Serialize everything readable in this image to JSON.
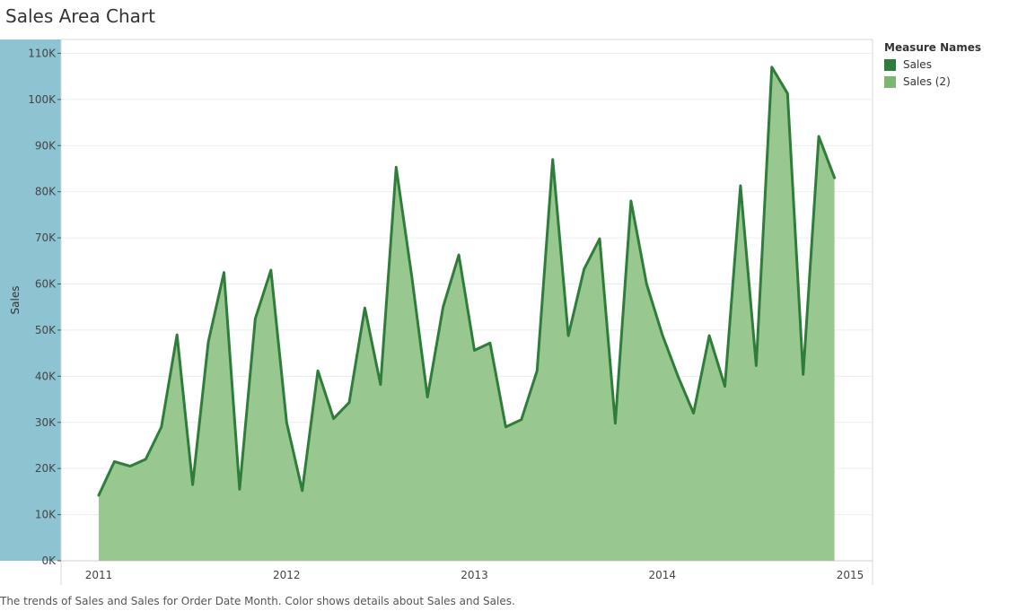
{
  "page": {
    "title": "Sales Area Chart",
    "caption": "The trends of Sales and Sales for Order Date Month.  Color shows details about Sales and Sales."
  },
  "legend": {
    "title": "Measure Names",
    "items": [
      {
        "label": "Sales",
        "color": "#2f7d3a"
      },
      {
        "label": "Sales (2)",
        "color": "#7ab872"
      }
    ]
  },
  "colors": {
    "axis_band": "#8ec4d2",
    "line": "#2f7d3a",
    "area": "#99c790"
  },
  "chart_data": {
    "type": "area",
    "ylabel": "Sales",
    "xlabel": "",
    "ylim": [
      0,
      110000
    ],
    "y_ticks": [
      "0K",
      "10K",
      "20K",
      "30K",
      "40K",
      "50K",
      "60K",
      "70K",
      "80K",
      "90K",
      "100K",
      "110K"
    ],
    "x_ticks": [
      "2011",
      "2012",
      "2013",
      "2014",
      "2015"
    ],
    "x": [
      "2011-01",
      "2011-02",
      "2011-03",
      "2011-04",
      "2011-05",
      "2011-06",
      "2011-07",
      "2011-08",
      "2011-09",
      "2011-10",
      "2011-11",
      "2011-12",
      "2012-01",
      "2012-02",
      "2012-03",
      "2012-04",
      "2012-05",
      "2012-06",
      "2012-07",
      "2012-08",
      "2012-09",
      "2012-10",
      "2012-11",
      "2012-12",
      "2013-01",
      "2013-02",
      "2013-03",
      "2013-04",
      "2013-05",
      "2013-06",
      "2013-07",
      "2013-08",
      "2013-09",
      "2013-10",
      "2013-11",
      "2013-12",
      "2014-01",
      "2014-02",
      "2014-03",
      "2014-04",
      "2014-05",
      "2014-06",
      "2014-07",
      "2014-08",
      "2014-09",
      "2014-10",
      "2014-11",
      "2014-12"
    ],
    "series": [
      {
        "name": "Sales",
        "values": [
          14200,
          21500,
          20500,
          22000,
          29000,
          49000,
          16500,
          47500,
          62500,
          15500,
          52500,
          63000,
          30000,
          15200,
          41200,
          30800,
          34300,
          54800,
          38200,
          85300,
          61500,
          35500,
          55000,
          66300,
          45600,
          47200,
          29000,
          30600,
          41200,
          87000,
          48800,
          63200,
          69800,
          29800,
          78000,
          60000,
          49000,
          40000,
          32000,
          48800,
          37800,
          81300,
          42300,
          107000,
          101300,
          40400,
          92000,
          83000
        ]
      },
      {
        "name": "Sales (2)",
        "values": [
          14200,
          21500,
          20500,
          22000,
          29000,
          49000,
          16500,
          47500,
          62500,
          15500,
          52500,
          63000,
          30000,
          15200,
          41200,
          30800,
          34300,
          54800,
          38200,
          85300,
          61500,
          35500,
          55000,
          66300,
          45600,
          47200,
          29000,
          30600,
          41200,
          87000,
          48800,
          63200,
          69800,
          29800,
          78000,
          60000,
          49000,
          40000,
          32000,
          48800,
          37800,
          81300,
          42300,
          107000,
          101300,
          40400,
          92000,
          83000
        ]
      }
    ],
    "grid": true,
    "legend_position": "right"
  }
}
